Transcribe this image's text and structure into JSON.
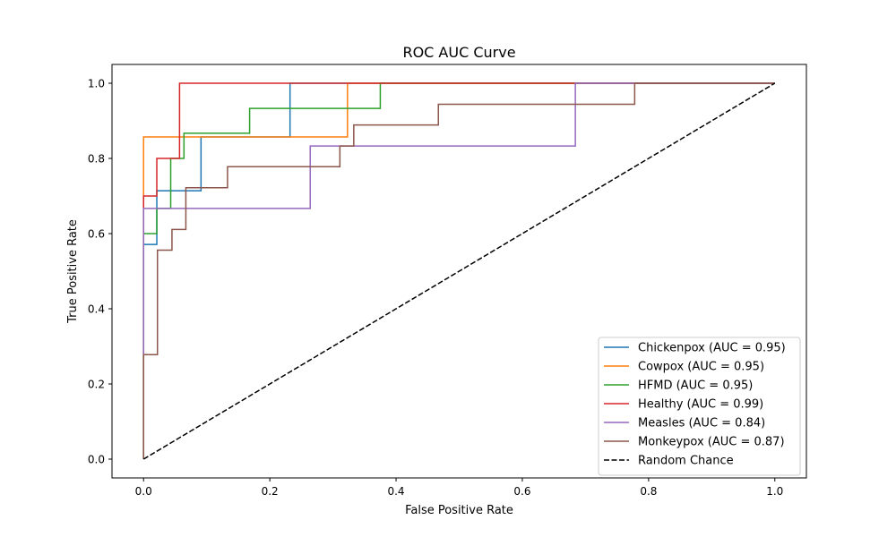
{
  "chart_data": {
    "type": "line",
    "title": "ROC AUC Curve",
    "xlabel": "False Positive Rate",
    "ylabel": "True Positive Rate",
    "xlim": [
      -0.05,
      1.05
    ],
    "ylim": [
      -0.05,
      1.05
    ],
    "xticks": [
      "0.0",
      "0.2",
      "0.4",
      "0.6",
      "0.8",
      "1.0"
    ],
    "yticks": [
      "0.0",
      "0.2",
      "0.4",
      "0.6",
      "0.8",
      "1.0"
    ],
    "grid": false,
    "legend": "lower-right",
    "series": [
      {
        "name": "Chickenpox (AUC = 0.95)",
        "color": "#1f77b4",
        "x": [
          0,
          0,
          0.021,
          0.021,
          0.091,
          0.091,
          0.232,
          0.232,
          1.0
        ],
        "y": [
          0,
          0.571,
          0.571,
          0.714,
          0.714,
          0.857,
          0.857,
          1.0,
          1.0
        ]
      },
      {
        "name": "Cowpox (AUC = 0.95)",
        "color": "#ff7f0e",
        "x": [
          0,
          0,
          0.323,
          0.323,
          1.0
        ],
        "y": [
          0,
          0.857,
          0.857,
          1.0,
          1.0
        ]
      },
      {
        "name": "HFMD (AUC = 0.95)",
        "color": "#2ca02c",
        "x": [
          0,
          0,
          0.021,
          0.021,
          0.043,
          0.043,
          0.064,
          0.064,
          0.168,
          0.168,
          0.375,
          0.375,
          1.0
        ],
        "y": [
          0,
          0.6,
          0.6,
          0.667,
          0.667,
          0.8,
          0.8,
          0.867,
          0.867,
          0.933,
          0.933,
          1.0,
          1.0
        ]
      },
      {
        "name": "Healthy (AUC = 0.99)",
        "color": "#d62728",
        "x": [
          0,
          0,
          0.021,
          0.021,
          0.057,
          0.057,
          1.0
        ],
        "y": [
          0,
          0.7,
          0.7,
          0.8,
          0.8,
          1.0,
          1.0
        ]
      },
      {
        "name": "Measles (AUC = 0.84)",
        "color": "#9467bd",
        "x": [
          0,
          0,
          0.264,
          0.264,
          0.684,
          0.684,
          1.0
        ],
        "y": [
          0,
          0.667,
          0.667,
          0.833,
          0.833,
          1.0,
          1.0
        ]
      },
      {
        "name": "Monkeypox (AUC = 0.87)",
        "color": "#8c564b",
        "x": [
          0,
          0,
          0.022,
          0.022,
          0.045,
          0.045,
          0.067,
          0.067,
          0.133,
          0.133,
          0.311,
          0.311,
          0.333,
          0.333,
          0.467,
          0.467,
          0.778,
          0.778,
          1.0
        ],
        "y": [
          0,
          0.278,
          0.278,
          0.556,
          0.556,
          0.611,
          0.611,
          0.722,
          0.722,
          0.778,
          0.778,
          0.833,
          0.833,
          0.889,
          0.889,
          0.944,
          0.944,
          1.0,
          1.0
        ]
      },
      {
        "name": "Random Chance",
        "color": "#000000",
        "dashed": true,
        "x": [
          0,
          1
        ],
        "y": [
          0,
          1
        ]
      }
    ]
  }
}
